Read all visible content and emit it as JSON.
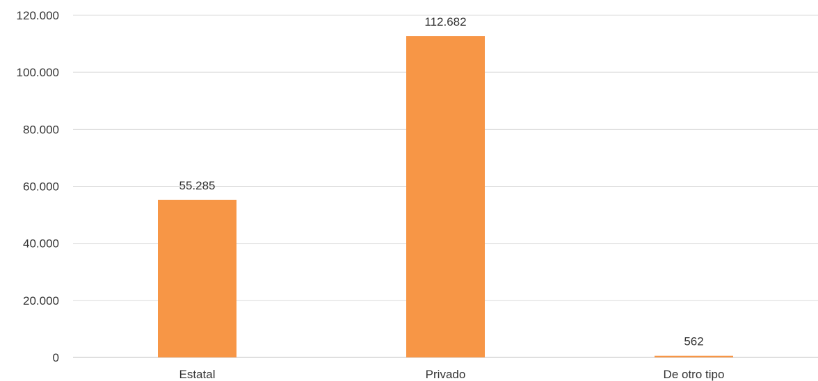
{
  "chart_data": {
    "type": "bar",
    "categories": [
      "Estatal",
      "Privado",
      "De otro tipo"
    ],
    "values": [
      55285,
      112682,
      562
    ],
    "value_labels": [
      "55.285",
      "112.682",
      "562"
    ],
    "ylim": [
      0,
      120000
    ],
    "yticks": [
      0,
      20000,
      40000,
      60000,
      80000,
      100000,
      120000
    ],
    "ytick_labels": [
      "0",
      "20.000",
      "40.000",
      "60.000",
      "80.000",
      "100.000",
      "120.000"
    ],
    "grid": true,
    "legend": "none",
    "bar_color": "#f79646"
  }
}
